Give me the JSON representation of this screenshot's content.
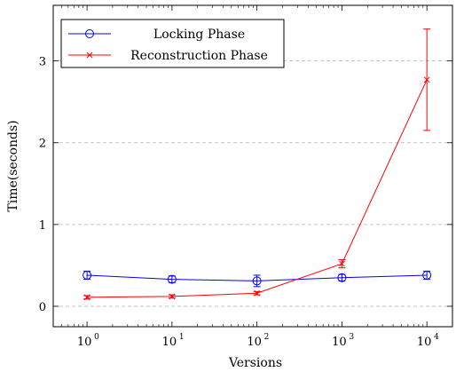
{
  "chart_data": {
    "type": "line",
    "title": "",
    "xlabel": "Versions",
    "ylabel": "Time(seconds)",
    "x_scale": "log",
    "x": [
      1,
      10,
      100,
      1000,
      10000
    ],
    "x_tick_labels": [
      {
        "base": "10",
        "exp": "0"
      },
      {
        "base": "10",
        "exp": "1"
      },
      {
        "base": "10",
        "exp": "2"
      },
      {
        "base": "10",
        "exp": "3"
      },
      {
        "base": "10",
        "exp": "4"
      }
    ],
    "y_ticks": [
      0,
      1,
      2,
      3
    ],
    "y_tick_labels": [
      "0",
      "1",
      "2",
      "3"
    ],
    "xlim": [
      0.4,
      20000
    ],
    "ylim": [
      -0.25,
      3.68
    ],
    "grid": "horizontal dashed",
    "legend_position": "top-left",
    "series": [
      {
        "name": "Locking Phase",
        "color": "#0000ff",
        "marker": "circle",
        "values": [
          0.38,
          0.33,
          0.31,
          0.35,
          0.38
        ],
        "errors": [
          0.05,
          0.04,
          0.07,
          0.04,
          0.05
        ]
      },
      {
        "name": "Reconstruction Phase",
        "color": "#ff0000",
        "marker": "x",
        "values": [
          0.11,
          0.12,
          0.16,
          0.52,
          2.77
        ],
        "errors": [
          0.02,
          0.02,
          0.02,
          0.05,
          0.62
        ]
      }
    ]
  }
}
